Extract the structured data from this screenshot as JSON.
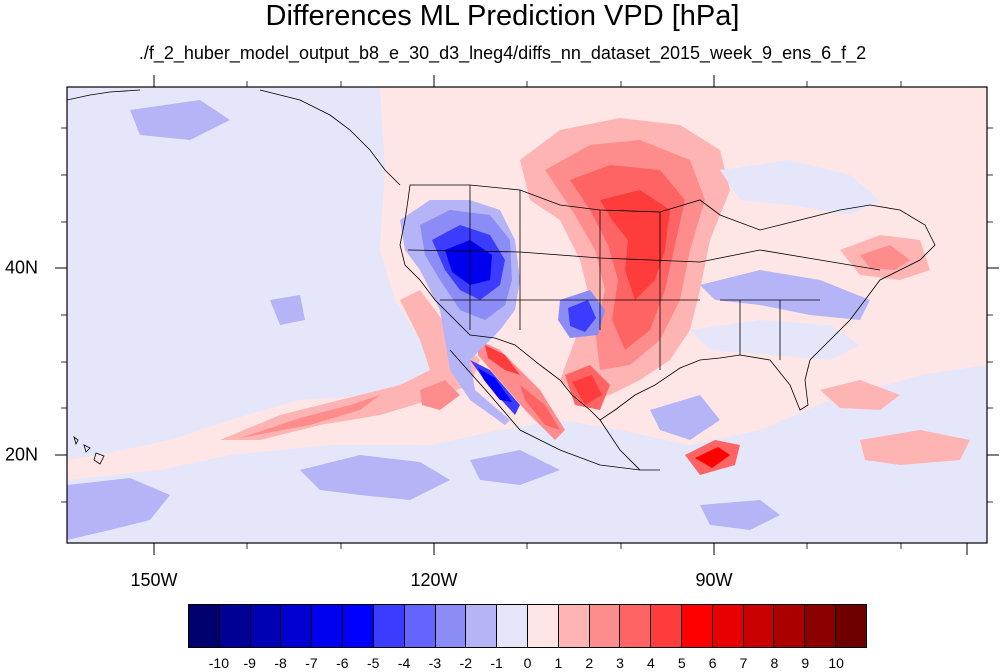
{
  "title": "Differences ML Prediction VPD [hPa]",
  "subtitle": "./f_2_huber_model_output_b8_e_30_d3_lneg4/diffs_nn_dataset_2015_week_9_ens_6_f_2",
  "x_axis": {
    "labels": [
      "150W",
      "120W",
      "90W"
    ]
  },
  "y_axis": {
    "labels": [
      "40N",
      "20N"
    ]
  },
  "colorbar": {
    "labels": [
      "-10",
      "-9",
      "-8",
      "-7",
      "-6",
      "-5",
      "-4",
      "-3",
      "-2",
      "-1",
      "0",
      "1",
      "2",
      "3",
      "4",
      "5",
      "6",
      "7",
      "8",
      "9",
      "10"
    ],
    "colors": [
      "#00006e",
      "#000096",
      "#0000b4",
      "#0000d2",
      "#0000f0",
      "#0000ff",
      "#3c3cff",
      "#6464ff",
      "#8c8cf6",
      "#b4b4f6",
      "#e6e6fa",
      "#ffe6e6",
      "#ffb4b4",
      "#ff8c8c",
      "#ff6464",
      "#ff3c3c",
      "#ff0000",
      "#e60000",
      "#c80000",
      "#aa0000",
      "#8c0000",
      "#6e0000"
    ]
  },
  "map_colors": {
    "background": "#ffe6e6",
    "ocean_west": "#e6e6fa",
    "border": "#000000"
  }
}
